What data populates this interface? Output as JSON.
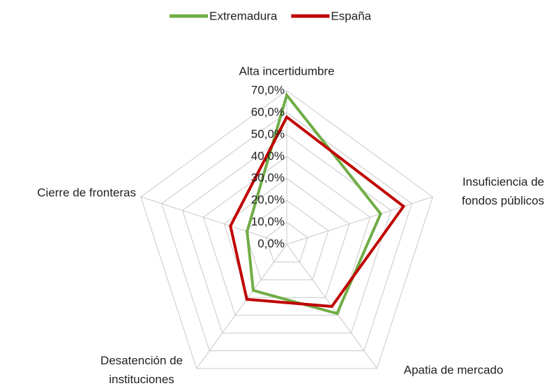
{
  "chart_data": {
    "type": "radar",
    "categories": [
      "Alta incertidumbre",
      "Insuficiencia de fondos públicos",
      "Apatia de mercado",
      "Desatención de instituciones",
      "Cierre de fronteras"
    ],
    "series": [
      {
        "name": "Extremadura",
        "color": "#70ad47",
        "values": [
          68,
          45,
          39,
          26,
          19
        ]
      },
      {
        "name": "España",
        "color": "#c00000",
        "values": [
          58,
          56,
          35,
          31,
          27
        ]
      }
    ],
    "rlim": [
      0,
      70
    ],
    "rticks": [
      {
        "value": 0,
        "label": "0,0%"
      },
      {
        "value": 10,
        "label": "10,0%"
      },
      {
        "value": 20,
        "label": "20,0%"
      },
      {
        "value": 30,
        "label": "30,0%"
      },
      {
        "value": 40,
        "label": "40,0%"
      },
      {
        "value": 50,
        "label": "50,0%"
      },
      {
        "value": 60,
        "label": "60,0%"
      },
      {
        "value": 70,
        "label": "70,0%"
      }
    ],
    "grid": true,
    "legend": "top"
  }
}
